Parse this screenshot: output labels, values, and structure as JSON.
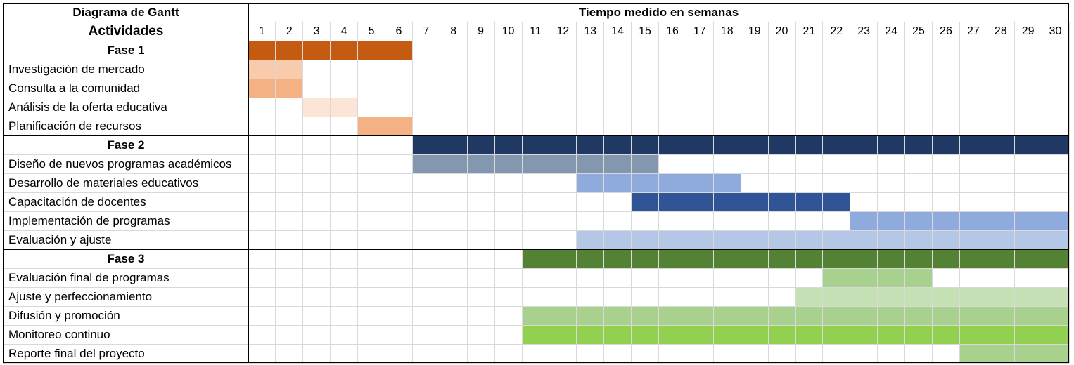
{
  "chart_data": {
    "type": "gantt",
    "title": "Diagrama de Gantt",
    "activities_header": "Actividades",
    "time_header": "Tiempo medido en semanas",
    "weeks": [
      "1",
      "2",
      "3",
      "4",
      "5",
      "6",
      "7",
      "8",
      "9",
      "10",
      "11",
      "12",
      "13",
      "14",
      "15",
      "16",
      "17",
      "18",
      "19",
      "20",
      "21",
      "22",
      "23",
      "24",
      "25",
      "26",
      "27",
      "28",
      "29",
      "30"
    ],
    "rows": [
      {
        "label": "Fase 1",
        "phase": true,
        "start": 1,
        "end": 6,
        "color": "#c55a11"
      },
      {
        "label": "Investigación de mercado",
        "start": 1,
        "end": 2,
        "color": "#f8cbad"
      },
      {
        "label": "Consulta a la comunidad",
        "start": 1,
        "end": 2,
        "color": "#f4b183"
      },
      {
        "label": "Análisis de la oferta educativa",
        "start": 3,
        "end": 4,
        "color": "#fce4d6"
      },
      {
        "label": "Planificación de recursos",
        "start": 5,
        "end": 6,
        "color": "#f4b183"
      },
      {
        "label": "Fase 2",
        "phase": true,
        "start": 7,
        "end": 30,
        "color": "#203864"
      },
      {
        "label": "Diseño de nuevos programas académicos",
        "start": 7,
        "end": 15,
        "color": "#8497b0"
      },
      {
        "label": "Desarrollo de materiales educativos",
        "start": 13,
        "end": 18,
        "color": "#8faadc"
      },
      {
        "label": "Capacitación de docentes",
        "start": 15,
        "end": 22,
        "color": "#2f5597"
      },
      {
        "label": "Implementación de programas",
        "start": 23,
        "end": 30,
        "color": "#8faadc"
      },
      {
        "label": "Evaluación y ajuste",
        "start": 13,
        "end": 30,
        "color": "#b4c7e7"
      },
      {
        "label": "Fase 3",
        "phase": true,
        "start": 11,
        "end": 30,
        "color": "#548235"
      },
      {
        "label": "Evaluación final de programas",
        "start": 22,
        "end": 25,
        "color": "#a9d18e"
      },
      {
        "label": "Ajuste y perfeccionamiento",
        "start": 21,
        "end": 30,
        "color": "#c5e0b4"
      },
      {
        "label": "Difusión y promoción",
        "start": 11,
        "end": 30,
        "color": "#a9d18e"
      },
      {
        "label": "Monitoreo continuo",
        "start": 11,
        "end": 30,
        "color": "#92d050"
      },
      {
        "label": "Reporte final del proyecto",
        "start": 27,
        "end": 30,
        "color": "#a9d18e"
      }
    ]
  }
}
